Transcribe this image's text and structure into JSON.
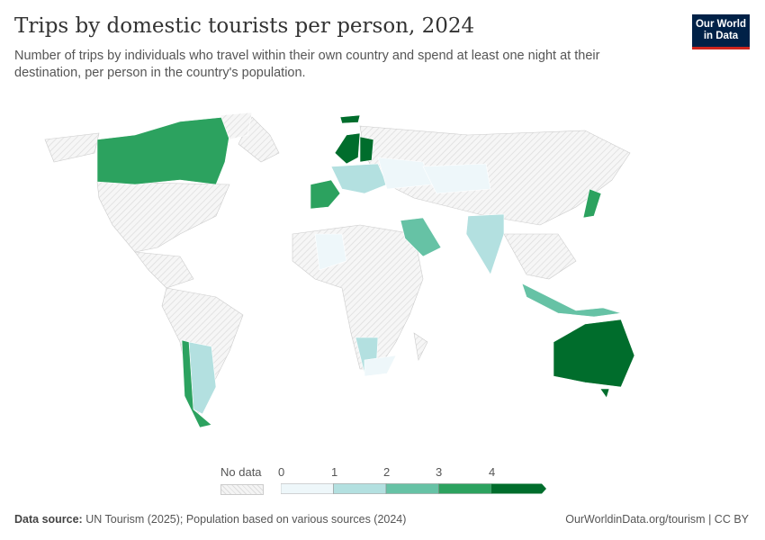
{
  "header": {
    "title": "Trips by domestic tourists per person, 2024",
    "subtitle": "Number of trips by individuals who travel within their own country and spend at least one night at their destination, per person in the country's population.",
    "logo": "Our World in Data"
  },
  "legend": {
    "no_data_label": "No data",
    "ticks": [
      "0",
      "1",
      "2",
      "3",
      "4"
    ],
    "colors": [
      "#eef7fa",
      "#b3e0e0",
      "#66c2a5",
      "#2ca25f",
      "#006d2c"
    ],
    "no_data_color": "#e6e6e6"
  },
  "map": {
    "year": "2024",
    "highlighted": {
      "Canada": "3-4",
      "Norway": ">4",
      "Sweden": ">4",
      "Finland": ">4",
      "Australia": ">4",
      "France": "3-4",
      "Spain": "3-4",
      "Chile": "3-4",
      "Japan": "3-4",
      "Saudi Arabia": "2-3",
      "Indonesia": "2-3",
      "India": "1-2",
      "Argentina": "1-2",
      "Namibia": "1-2"
    }
  },
  "footer": {
    "source_label": "Data source:",
    "source_text": "UN Tourism (2025); Population based on various sources (2024)",
    "link": "OurWorldinData.org/tourism | CC BY"
  }
}
